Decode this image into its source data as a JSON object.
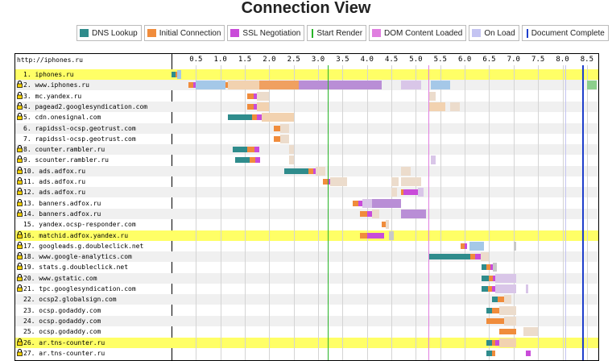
{
  "title": "Connection View",
  "legend": [
    {
      "label": "DNS Lookup",
      "color": "#2f8c8c",
      "kind": "box"
    },
    {
      "label": "Initial Connection",
      "color": "#f08c3c",
      "kind": "box"
    },
    {
      "label": "SSL Negotiation",
      "color": "#c94bd9",
      "kind": "box"
    },
    {
      "label": "Start Render",
      "color": "#28b428",
      "kind": "line"
    },
    {
      "label": "DOM Content Loaded",
      "color": "#e07fe0",
      "kind": "box"
    },
    {
      "label": "On Load",
      "color": "#c4c4f2",
      "kind": "box"
    },
    {
      "label": "Document Complete",
      "color": "#1f3fcc",
      "kind": "line"
    }
  ],
  "chart_data": {
    "type": "waterfall",
    "header": "http://iphones.ru",
    "x_ticks": [
      "0.5",
      "1.0",
      "1.5",
      "2.0",
      "2.5",
      "3.0",
      "3.5",
      "4.0",
      "4.5",
      "5.0",
      "5.5",
      "6.0",
      "6.5",
      "7.0",
      "7.5",
      "8.0",
      "8.5"
    ],
    "xlim": [
      0,
      8.7
    ],
    "markers": [
      {
        "name": "Start Render",
        "x": 3.2,
        "color": "#28b428"
      },
      {
        "name": "DOM Content Loaded",
        "x": 5.25,
        "color": "#e07fe0"
      },
      {
        "name": "On Load",
        "x": 8.05,
        "color": "#c4c4f2"
      },
      {
        "name": "Document Complete",
        "x": 8.4,
        "color": "#1f3fcc"
      }
    ],
    "colors": {
      "dns": "#2f8c8c",
      "connect": "#f08c3c",
      "ssl": "#c94bd9",
      "html": "#a5c8e8",
      "orange": "#f0a060",
      "purple": "#b98ed6",
      "orange_light": "#f2d2b0",
      "purple_light": "#d9c6e8",
      "gray": "#c8c8c8",
      "peach": "#ecdccc",
      "green": "#8ccf8c"
    },
    "rows": [
      {
        "label": "1. iphones.ru",
        "secure": false,
        "highlight": true,
        "segments": [
          [
            0.0,
            0.08,
            "dns"
          ],
          [
            0.08,
            0.12,
            "connect"
          ],
          [
            0.12,
            0.2,
            "html"
          ]
        ]
      },
      {
        "label": "2. www.iphones.ru",
        "secure": true,
        "highlight": false,
        "segments": [
          [
            0.35,
            0.45,
            "connect"
          ],
          [
            0.45,
            0.5,
            "ssl"
          ],
          [
            0.5,
            1.1,
            "html"
          ],
          [
            1.1,
            1.15,
            "connect"
          ],
          [
            1.15,
            1.8,
            "orange_light"
          ],
          [
            1.8,
            2.6,
            "orange"
          ],
          [
            2.6,
            3.55,
            "purple"
          ],
          [
            3.55,
            4.3,
            "purple"
          ],
          [
            4.7,
            5.1,
            "purple_light"
          ],
          [
            5.3,
            5.7,
            "html"
          ],
          [
            8.5,
            8.7,
            "green"
          ]
        ]
      },
      {
        "label": "3. mc.yandex.ru",
        "secure": true,
        "highlight": false,
        "segments": [
          [
            1.55,
            1.68,
            "connect"
          ],
          [
            1.68,
            1.75,
            "ssl"
          ],
          [
            1.75,
            2.0,
            "peach"
          ],
          [
            5.25,
            5.4,
            "peach"
          ]
        ]
      },
      {
        "label": "4. pagead2.googlesyndication.com",
        "secure": true,
        "highlight": false,
        "segments": [
          [
            1.55,
            1.68,
            "connect"
          ],
          [
            1.68,
            1.75,
            "ssl"
          ],
          [
            1.75,
            2.0,
            "orange_light"
          ],
          [
            5.25,
            5.6,
            "orange_light"
          ],
          [
            5.7,
            5.9,
            "peach"
          ]
        ]
      },
      {
        "label": "5. cdn.onesignal.com",
        "secure": true,
        "highlight": false,
        "segments": [
          [
            1.15,
            1.65,
            "dns"
          ],
          [
            1.65,
            1.75,
            "connect"
          ],
          [
            1.75,
            1.85,
            "ssl"
          ],
          [
            1.85,
            2.5,
            "orange_light"
          ]
        ]
      },
      {
        "label": "6. rapidssl-ocsp.geotrust.com",
        "secure": false,
        "highlight": false,
        "segments": [
          [
            2.1,
            2.22,
            "connect"
          ],
          [
            2.22,
            2.4,
            "peach"
          ]
        ]
      },
      {
        "label": "7. rapidssl-ocsp.geotrust.com",
        "secure": false,
        "highlight": false,
        "segments": [
          [
            2.1,
            2.22,
            "connect"
          ],
          [
            2.22,
            2.4,
            "peach"
          ]
        ]
      },
      {
        "label": "8. counter.rambler.ru",
        "secure": true,
        "highlight": false,
        "segments": [
          [
            1.25,
            1.55,
            "dns"
          ],
          [
            1.55,
            1.7,
            "connect"
          ],
          [
            1.7,
            1.8,
            "ssl"
          ],
          [
            2.4,
            2.5,
            "peach"
          ]
        ]
      },
      {
        "label": "9. scounter.rambler.ru",
        "secure": true,
        "highlight": false,
        "segments": [
          [
            1.3,
            1.6,
            "dns"
          ],
          [
            1.6,
            1.72,
            "connect"
          ],
          [
            1.72,
            1.82,
            "ssl"
          ],
          [
            2.4,
            2.5,
            "peach"
          ],
          [
            5.3,
            5.4,
            "purple_light"
          ]
        ]
      },
      {
        "label": "10. ads.adfox.ru",
        "secure": true,
        "highlight": false,
        "segments": [
          [
            2.3,
            2.8,
            "dns"
          ],
          [
            2.8,
            2.9,
            "connect"
          ],
          [
            2.9,
            2.95,
            "ssl"
          ],
          [
            2.95,
            3.05,
            "peach"
          ],
          [
            3.05,
            3.15,
            "peach"
          ],
          [
            4.7,
            4.9,
            "peach"
          ]
        ]
      },
      {
        "label": "11. ads.adfox.ru",
        "secure": true,
        "highlight": false,
        "segments": [
          [
            3.1,
            3.2,
            "connect"
          ],
          [
            3.2,
            3.25,
            "ssl"
          ],
          [
            3.25,
            3.6,
            "peach"
          ],
          [
            4.5,
            4.65,
            "peach"
          ],
          [
            4.7,
            5.1,
            "peach"
          ]
        ]
      },
      {
        "label": "12. ads.adfox.ru",
        "secure": true,
        "highlight": false,
        "segments": [
          [
            4.5,
            4.62,
            "peach"
          ],
          [
            4.7,
            5.1,
            "connect"
          ],
          [
            4.75,
            5.05,
            "ssl"
          ],
          [
            5.05,
            5.15,
            "purple_light"
          ]
        ]
      },
      {
        "label": "13. banners.adfox.ru",
        "secure": true,
        "highlight": false,
        "segments": [
          [
            3.7,
            3.82,
            "connect"
          ],
          [
            3.82,
            3.9,
            "ssl"
          ],
          [
            3.9,
            4.1,
            "purple_light"
          ],
          [
            4.1,
            4.7,
            "purple"
          ]
        ]
      },
      {
        "label": "14. banners.adfox.ru",
        "secure": true,
        "highlight": false,
        "segments": [
          [
            3.85,
            4.0,
            "connect"
          ],
          [
            4.0,
            4.1,
            "ssl"
          ],
          [
            4.1,
            4.25,
            "peach"
          ],
          [
            4.7,
            5.2,
            "purple"
          ]
        ]
      },
      {
        "label": "15. yandex.ocsp-responder.com",
        "secure": false,
        "highlight": false,
        "segments": [
          [
            4.3,
            4.38,
            "connect"
          ],
          [
            4.38,
            4.45,
            "peach"
          ]
        ]
      },
      {
        "label": "16. matchid.adfox.yandex.ru",
        "secure": true,
        "highlight": true,
        "segments": [
          [
            3.85,
            4.0,
            "connect"
          ],
          [
            4.0,
            4.35,
            "ssl"
          ],
          [
            4.45,
            4.55,
            "gray"
          ]
        ]
      },
      {
        "label": "17. googleads.g.doubleclick.net",
        "secure": true,
        "highlight": false,
        "segments": [
          [
            5.92,
            6.0,
            "connect"
          ],
          [
            6.0,
            6.05,
            "ssl"
          ],
          [
            6.1,
            6.2,
            "html"
          ],
          [
            6.2,
            6.4,
            "html"
          ],
          [
            7.0,
            7.05,
            "gray"
          ]
        ]
      },
      {
        "label": "18. www.google-analytics.com",
        "secure": true,
        "highlight": false,
        "segments": [
          [
            5.25,
            6.12,
            "dns"
          ],
          [
            6.12,
            6.22,
            "connect"
          ],
          [
            6.22,
            6.32,
            "ssl"
          ],
          [
            6.32,
            6.5,
            "peach"
          ]
        ]
      },
      {
        "label": "19. stats.g.doubleclick.net",
        "secure": true,
        "highlight": false,
        "segments": [
          [
            6.35,
            6.45,
            "dns"
          ],
          [
            6.45,
            6.52,
            "connect"
          ],
          [
            6.52,
            6.58,
            "ssl"
          ],
          [
            6.58,
            6.65,
            "gray"
          ]
        ]
      },
      {
        "label": "20. www.gstatic.com",
        "secure": true,
        "highlight": false,
        "segments": [
          [
            6.35,
            6.5,
            "dns"
          ],
          [
            6.5,
            6.57,
            "connect"
          ],
          [
            6.57,
            6.63,
            "ssl"
          ],
          [
            6.63,
            7.05,
            "purple_light"
          ]
        ]
      },
      {
        "label": "21. tpc.googlesyndication.com",
        "secure": true,
        "highlight": false,
        "segments": [
          [
            6.35,
            6.48,
            "dns"
          ],
          [
            6.48,
            6.55,
            "connect"
          ],
          [
            6.55,
            6.62,
            "ssl"
          ],
          [
            6.62,
            7.05,
            "purple_light"
          ],
          [
            7.25,
            7.3,
            "purple_light"
          ]
        ]
      },
      {
        "label": "22. ocsp2.globalsign.com",
        "secure": false,
        "highlight": false,
        "segments": [
          [
            6.55,
            6.68,
            "dns"
          ],
          [
            6.68,
            6.8,
            "connect"
          ],
          [
            6.8,
            6.95,
            "peach"
          ]
        ]
      },
      {
        "label": "23. ocsp.godaddy.com",
        "secure": false,
        "highlight": false,
        "segments": [
          [
            6.45,
            6.55,
            "dns"
          ],
          [
            6.55,
            6.7,
            "connect"
          ],
          [
            6.7,
            6.85,
            "peach"
          ],
          [
            6.85,
            7.05,
            "peach"
          ]
        ]
      },
      {
        "label": "24. ocsp.godaddy.com",
        "secure": false,
        "highlight": false,
        "segments": [
          [
            6.45,
            6.8,
            "connect"
          ],
          [
            6.8,
            7.05,
            "peach"
          ]
        ]
      },
      {
        "label": "25. ocsp.godaddy.com",
        "secure": false,
        "highlight": false,
        "segments": [
          [
            6.7,
            7.05,
            "connect"
          ],
          [
            7.2,
            7.5,
            "peach"
          ]
        ]
      },
      {
        "label": "26. ar.tns-counter.ru",
        "secure": true,
        "highlight": true,
        "segments": [
          [
            6.45,
            6.55,
            "dns"
          ],
          [
            6.55,
            6.62,
            "connect"
          ],
          [
            6.62,
            6.7,
            "ssl"
          ],
          [
            6.7,
            7.05,
            "orange_light"
          ]
        ]
      },
      {
        "label": "27. ar.tns-counter.ru",
        "secure": true,
        "highlight": false,
        "segments": [
          [
            6.45,
            6.55,
            "dns"
          ],
          [
            6.55,
            6.62,
            "connect"
          ],
          [
            7.25,
            7.35,
            "ssl"
          ]
        ]
      }
    ]
  }
}
